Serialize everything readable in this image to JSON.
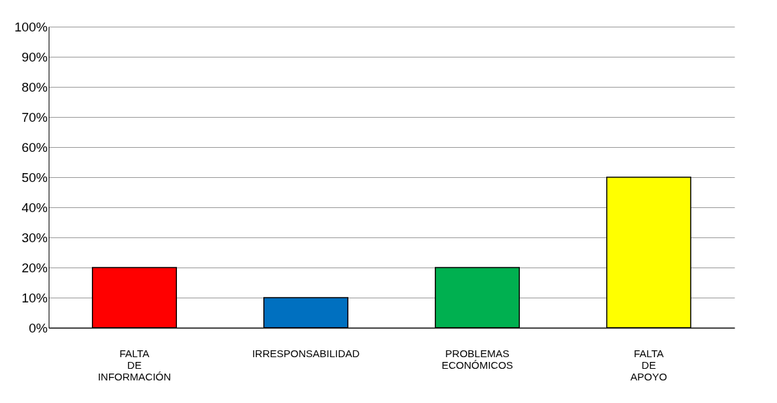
{
  "chart_data": {
    "type": "bar",
    "categories": [
      "FALTA DE INFORMACIÓN",
      "IRRESPONSABILIDAD",
      "PROBLEMAS ECONÓMICOS",
      "FALTA DE APOYO"
    ],
    "values": [
      20,
      10,
      20,
      50
    ],
    "colors": [
      "#ff0000",
      "#0070c0",
      "#00b050",
      "#ffff00"
    ],
    "ylim": [
      0,
      100
    ],
    "yticks": [
      {
        "value": 0,
        "label": "0%"
      },
      {
        "value": 10,
        "label": "10%"
      },
      {
        "value": 20,
        "label": "20%"
      },
      {
        "value": 30,
        "label": "30%"
      },
      {
        "value": 40,
        "label": "40%"
      },
      {
        "value": 50,
        "label": "50%"
      },
      {
        "value": 60,
        "label": "60%"
      },
      {
        "value": 70,
        "label": "70%"
      },
      {
        "value": 80,
        "label": "80%"
      },
      {
        "value": 90,
        "label": "90%"
      },
      {
        "value": 100,
        "label": "100%"
      }
    ],
    "grid": "y"
  }
}
